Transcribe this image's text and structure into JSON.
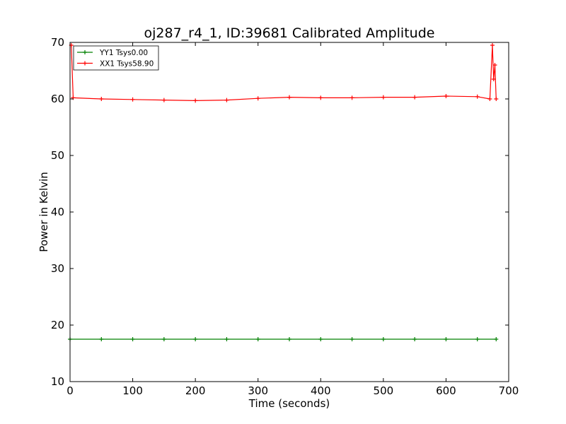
{
  "chart_data": {
    "type": "line",
    "title": "oj287_r4_1, ID:39681 Calibrated Amplitude",
    "xlabel": "Time (seconds)",
    "ylabel": "Power in Kelvin",
    "xlim": [
      0,
      700
    ],
    "ylim": [
      10,
      70
    ],
    "xticks": [
      0,
      100,
      200,
      300,
      400,
      500,
      600,
      700
    ],
    "yticks": [
      10,
      20,
      30,
      40,
      50,
      60,
      70
    ],
    "grid": false,
    "legend_position": "top-left",
    "series": [
      {
        "name": "YY1 Tsys0.00",
        "color": "#008000",
        "marker": "plus",
        "x": [
          0,
          50,
          100,
          150,
          200,
          250,
          300,
          350,
          400,
          450,
          500,
          550,
          600,
          650,
          680
        ],
        "y": [
          17.5,
          17.5,
          17.5,
          17.5,
          17.5,
          17.5,
          17.5,
          17.5,
          17.5,
          17.5,
          17.5,
          17.5,
          17.5,
          17.5,
          17.5
        ]
      },
      {
        "name": "XX1 Tsys58.90",
        "color": "#ff0000",
        "marker": "plus",
        "x": [
          2,
          5,
          50,
          100,
          150,
          200,
          250,
          300,
          350,
          400,
          450,
          500,
          550,
          600,
          650,
          670,
          674,
          676,
          678,
          680
        ],
        "y": [
          69.5,
          60.2,
          60.0,
          59.9,
          59.8,
          59.7,
          59.8,
          60.1,
          60.3,
          60.2,
          60.2,
          60.3,
          60.3,
          60.5,
          60.4,
          60.0,
          69.5,
          63.5,
          66.0,
          60.0
        ]
      }
    ]
  }
}
